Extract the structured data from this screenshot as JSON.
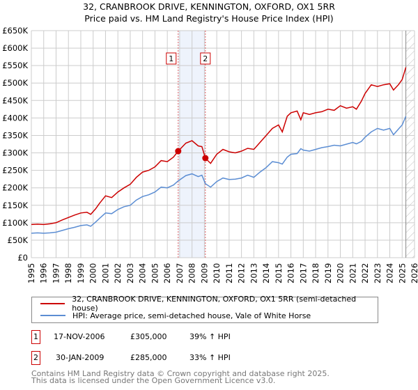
{
  "chart_data": {
    "type": "line",
    "title": "32, CRANBROOK DRIVE, KENNINGTON, OXFORD, OX1 5RR",
    "subtitle": "Price paid vs. HM Land Registry's House Price Index (HPI)",
    "xlim": [
      1995,
      2026
    ],
    "ylim": [
      0,
      650000
    ],
    "x_ticks": [
      "1995",
      "1996",
      "1997",
      "1998",
      "1999",
      "2000",
      "2001",
      "2002",
      "2003",
      "2004",
      "2005",
      "2006",
      "2007",
      "2008",
      "2009",
      "2010",
      "2011",
      "2012",
      "2013",
      "2014",
      "2015",
      "2016",
      "2017",
      "2018",
      "2019",
      "2020",
      "2021",
      "2022",
      "2023",
      "2024",
      "2025",
      "2026"
    ],
    "y_ticks": [
      "£0",
      "£50K",
      "£100K",
      "£150K",
      "£200K",
      "£250K",
      "£300K",
      "£350K",
      "£400K",
      "£450K",
      "£500K",
      "£550K",
      "£600K",
      "£650K"
    ],
    "grid": true,
    "x": [
      1995,
      1995.5,
      1996,
      1996.5,
      1997,
      1997.5,
      1998,
      1998.5,
      1999,
      1999.5,
      1999.8,
      2000.2,
      2000.5,
      2001,
      2001.5,
      2002,
      2002.5,
      2003,
      2003.5,
      2004,
      2004.5,
      2005,
      2005.5,
      2006,
      2006.5,
      2006.88,
      2007.5,
      2008,
      2008.5,
      2008.8,
      2009.08,
      2009.5,
      2010,
      2010.5,
      2011,
      2011.5,
      2012,
      2012.5,
      2013,
      2013.5,
      2014,
      2014.5,
      2015,
      2015.3,
      2015.7,
      2016,
      2016.5,
      2016.8,
      2017,
      2017.5,
      2018,
      2018.5,
      2019,
      2019.5,
      2020,
      2020.5,
      2021,
      2021.3,
      2021.7,
      2022,
      2022.5,
      2023,
      2023.5,
      2024,
      2024.3,
      2024.7,
      2025,
      2025.3
    ],
    "series": [
      {
        "name": "32, CRANBROOK DRIVE, KENNINGTON, OXFORD, OX1 5RR (semi-detached house)",
        "color": "#cc0000",
        "values": [
          95,
          96,
          95,
          97,
          100,
          108,
          115,
          122,
          128,
          130,
          124,
          140,
          155,
          177,
          172,
          188,
          200,
          210,
          230,
          245,
          250,
          260,
          278,
          275,
          288,
          305,
          328,
          335,
          320,
          318,
          285,
          270,
          296,
          310,
          303,
          300,
          305,
          313,
          310,
          330,
          350,
          370,
          380,
          360,
          405,
          415,
          420,
          395,
          415,
          410,
          415,
          418,
          425,
          422,
          435,
          428,
          432,
          425,
          448,
          470,
          495,
          490,
          495,
          498,
          480,
          495,
          510,
          545
        ]
      },
      {
        "name": "HPI: Average price, semi-detached house, Vale of White Horse",
        "color": "#5b8dd3",
        "values": [
          70,
          71,
          70,
          71,
          73,
          78,
          83,
          87,
          92,
          94,
          90,
          102,
          112,
          128,
          126,
          138,
          146,
          150,
          165,
          175,
          180,
          188,
          202,
          200,
          208,
          220,
          235,
          240,
          232,
          236,
          212,
          202,
          218,
          228,
          224,
          225,
          228,
          236,
          230,
          245,
          258,
          275,
          272,
          268,
          288,
          296,
          298,
          312,
          308,
          305,
          310,
          315,
          318,
          322,
          320,
          325,
          330,
          326,
          333,
          345,
          360,
          370,
          365,
          370,
          352,
          368,
          380,
          405
        ]
      }
    ],
    "sales": [
      {
        "label": "1",
        "x": 2006.88,
        "value": 305000,
        "date": "17-NOV-2006",
        "price": "£305,000",
        "hpi": "39% ↑ HPI"
      },
      {
        "label": "2",
        "x": 2009.08,
        "value": 285000,
        "date": "30-JAN-2009",
        "price": "£285,000",
        "hpi": "33% ↑ HPI"
      }
    ],
    "data_end": 2025.3,
    "legend": "bottom"
  },
  "footer": {
    "line1": "Contains HM Land Registry data © Crown copyright and database right 2025.",
    "line2": "This data is licensed under the Open Government Licence v3.0."
  }
}
